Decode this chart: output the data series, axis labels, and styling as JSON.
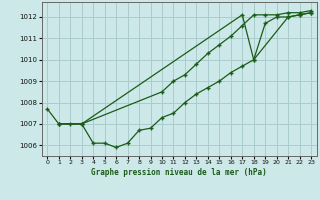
{
  "title": "Graphe pression niveau de la mer (hPa)",
  "background_color": "#cde8e8",
  "grid_color": "#aacccc",
  "line_color": "#1a5c1a",
  "xlim": [
    -0.5,
    23.5
  ],
  "ylim": [
    1005.5,
    1012.7
  ],
  "yticks": [
    1006,
    1007,
    1008,
    1009,
    1010,
    1011,
    1012
  ],
  "xticks": [
    0,
    1,
    2,
    3,
    4,
    5,
    6,
    7,
    8,
    9,
    10,
    11,
    12,
    13,
    14,
    15,
    16,
    17,
    18,
    19,
    20,
    21,
    22,
    23
  ],
  "series1_x": [
    0,
    1,
    2,
    3,
    4,
    5,
    6,
    7,
    8,
    9,
    10,
    11,
    12,
    13,
    14,
    15,
    16,
    17,
    18,
    19,
    20,
    21,
    22,
    23
  ],
  "series1_y": [
    1007.7,
    1007.0,
    1007.0,
    1007.0,
    1006.1,
    1006.1,
    1005.9,
    1006.1,
    1006.7,
    1006.8,
    1007.3,
    1007.5,
    1008.0,
    1008.4,
    1008.7,
    1009.0,
    1009.4,
    1009.7,
    1010.0,
    1011.7,
    1012.0,
    1012.0,
    1012.1,
    1012.2
  ],
  "series2_x": [
    1,
    3,
    10,
    11,
    12,
    13,
    14,
    15,
    16,
    17,
    18,
    19,
    20,
    21,
    22,
    23
  ],
  "series2_y": [
    1007.0,
    1007.0,
    1008.5,
    1009.0,
    1009.3,
    1009.8,
    1010.3,
    1010.7,
    1011.1,
    1011.6,
    1012.1,
    1012.1,
    1012.1,
    1012.2,
    1012.2,
    1012.3
  ],
  "series3_x": [
    1,
    3,
    17,
    18,
    21,
    22,
    23
  ],
  "series3_y": [
    1007.0,
    1007.0,
    1012.1,
    1010.0,
    1012.0,
    1012.1,
    1012.2
  ]
}
